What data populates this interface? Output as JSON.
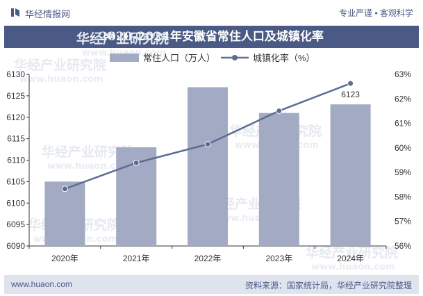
{
  "header": {
    "brand": "华经情报网",
    "slogan": "专业严谨 • 客观科学"
  },
  "title": "2020-2024年安徽省常住人口及城镇化率",
  "footer": {
    "left": "www.huaon.com",
    "right": "资料来源：国家统计局，华经产业研究院整理"
  },
  "watermark": {
    "cn": "华经产业研究院",
    "en": "www.huaon.com"
  },
  "colors": {
    "brand": "#4a5a85",
    "bar": "#a3aac3",
    "line": "#5c6c93",
    "footer_bg": "#dfe3ee"
  },
  "chart_data": {
    "type": "bar",
    "categories": [
      "2020年",
      "2021年",
      "2022年",
      "2023年",
      "2024年"
    ],
    "series": [
      {
        "name": "常住人口（万人）",
        "type": "bar",
        "axis": "left",
        "values": [
          6105,
          6113,
          6127,
          6121,
          6123
        ]
      },
      {
        "name": "城镇化率（%）",
        "type": "line",
        "axis": "right",
        "values": [
          58.33,
          59.39,
          60.15,
          61.51,
          62.63
        ]
      }
    ],
    "data_labels": [
      {
        "series": 0,
        "index": 4,
        "text": "6123"
      }
    ],
    "y_left": {
      "min": 6090,
      "max": 6130,
      "ticks": [
        "6090",
        "6095",
        "6100",
        "6105",
        "6110",
        "6115",
        "6120",
        "6125",
        "6130"
      ]
    },
    "y_right": {
      "min": 56,
      "max": 63,
      "ticks": [
        "56%",
        "57%",
        "58%",
        "59%",
        "60%",
        "61%",
        "62%",
        "63%"
      ]
    },
    "legend_position": "top",
    "grid": false
  }
}
